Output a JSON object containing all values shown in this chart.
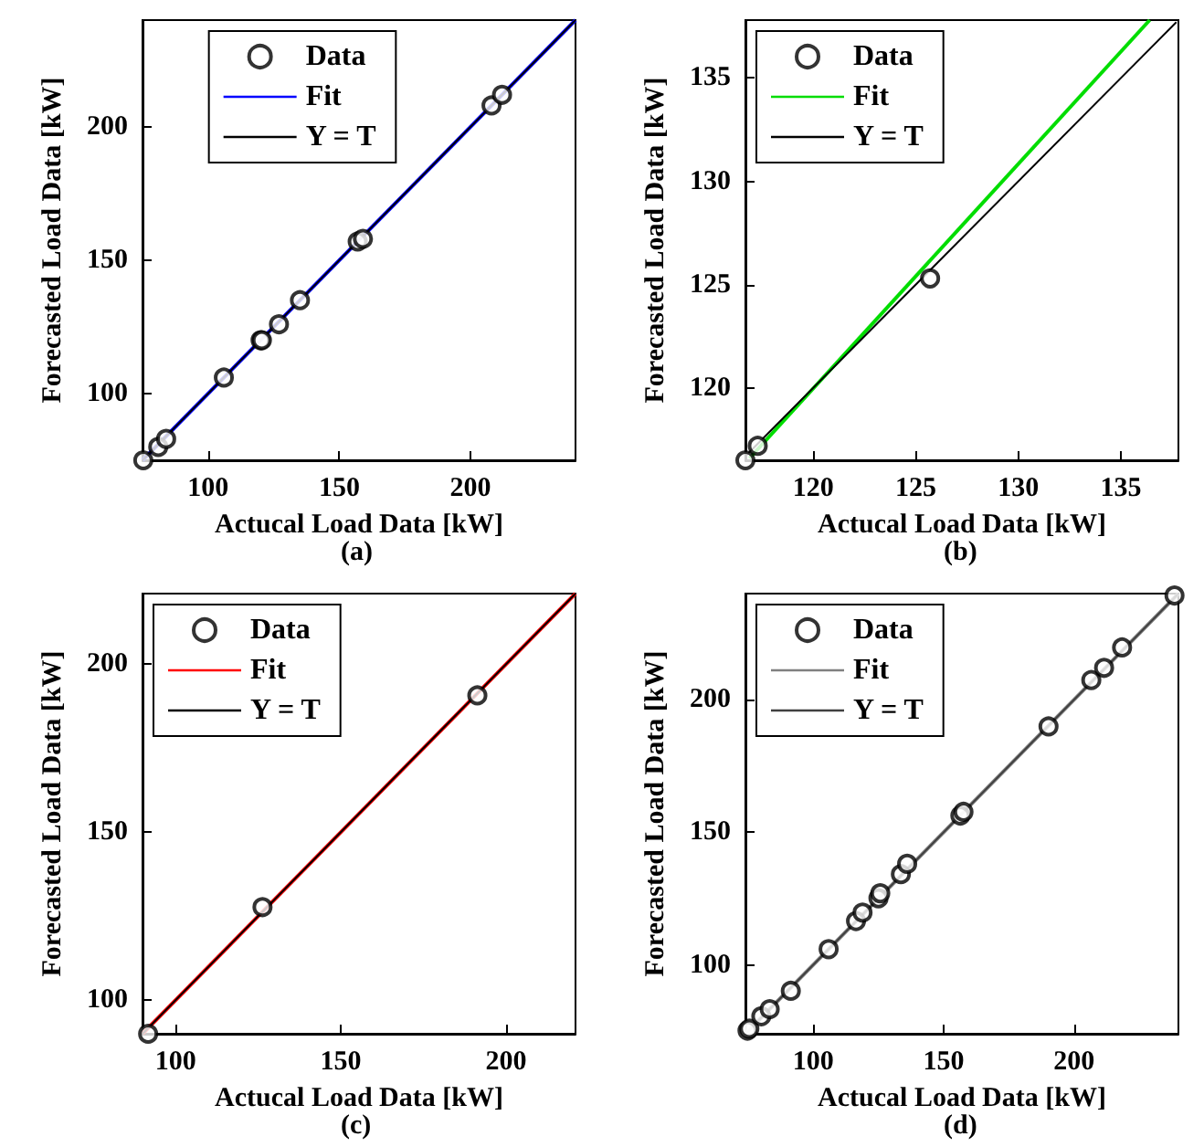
{
  "chart_data": [
    {
      "type": "scatter",
      "xlabel": "Actucal Load Data [kW]",
      "ylabel": "Forecasted Load Data [kW]",
      "annotations": [
        "(a)"
      ],
      "xlim": [
        75,
        240
      ],
      "ylim": [
        75,
        240
      ],
      "xticks": [
        100,
        150,
        200
      ],
      "yticks": [
        100,
        150,
        200
      ],
      "grid": false,
      "legend": "top",
      "series": [
        {
          "name": "Data",
          "marker": "circle",
          "color": "#000000",
          "x": [
            75.3,
            81,
            84,
            106,
            120,
            120.5,
            127,
            135,
            157,
            159,
            208,
            212
          ],
          "values": [
            75,
            80,
            83,
            106,
            120,
            120,
            126,
            135,
            157,
            158,
            208,
            212
          ]
        },
        {
          "name": "Fit",
          "type": "line",
          "marker": "none",
          "color": "#0000ff",
          "x": [
            75,
            240
          ],
          "values": [
            75,
            240
          ]
        },
        {
          "name": "Y = T",
          "type": "line",
          "marker": "none",
          "color": "#000000",
          "x": [
            75,
            240
          ],
          "values": [
            75,
            240
          ]
        }
      ]
    },
    {
      "type": "scatter",
      "xlabel": "Actucal Load Data [kW]",
      "ylabel": "Forecasted Load Data [kW]",
      "annotations": [
        "(b)"
      ],
      "xlim": [
        116.7,
        137.8
      ],
      "ylim": [
        116.5,
        137.8
      ],
      "xticks": [
        120,
        125,
        130,
        135
      ],
      "yticks": [
        120,
        125,
        130,
        135
      ],
      "grid": false,
      "legend": "top left",
      "series": [
        {
          "name": "Data",
          "marker": "circle",
          "color": "#000000",
          "x": [
            116.7,
            117.3,
            125.7
          ],
          "values": [
            116.5,
            117.2,
            125.3
          ]
        },
        {
          "name": "Fit",
          "type": "line",
          "marker": "none",
          "color": "#00dd00",
          "x": [
            116.9,
            136.4
          ],
          "values": [
            116.6,
            137.8
          ]
        },
        {
          "name": "Y = T",
          "type": "line",
          "marker": "none",
          "color": "#000000",
          "x": [
            116.7,
            137.7
          ],
          "values": [
            116.7,
            137.7
          ]
        }
      ]
    },
    {
      "type": "scatter",
      "xlabel": "Actucal Load Data [kW]",
      "ylabel": "Forecasted Load Data [kW]",
      "annotations": [
        "(c)"
      ],
      "xlim": [
        90,
        221
      ],
      "ylim": [
        90,
        221
      ],
      "xticks": [
        100,
        150,
        200
      ],
      "yticks": [
        100,
        150,
        200
      ],
      "grid": false,
      "legend": "top left",
      "series": [
        {
          "name": "Data",
          "marker": "circle",
          "color": "#000000",
          "x": [
            91.7,
            126.3,
            191.3
          ],
          "values": [
            90,
            127.7,
            190.7
          ]
        },
        {
          "name": "Fit",
          "type": "line",
          "marker": "none",
          "color": "#ff0000",
          "x": [
            90,
            221
          ],
          "values": [
            90,
            221
          ]
        },
        {
          "name": "Y = T",
          "type": "line",
          "marker": "none",
          "color": "#000000",
          "x": [
            90,
            221
          ],
          "values": [
            90,
            221
          ]
        }
      ]
    },
    {
      "type": "scatter",
      "xlabel": "Actucal Load Data [kW]",
      "ylabel": "Forecasted Load Data [kW]",
      "annotations": [
        "(d)"
      ],
      "xlim": [
        74,
        240
      ],
      "ylim": [
        74,
        240
      ],
      "xticks": [
        100,
        150,
        200
      ],
      "yticks": [
        100,
        150,
        200
      ],
      "grid": false,
      "legend": "top left",
      "series": [
        {
          "name": "Data",
          "marker": "circle",
          "color": "#000000",
          "x": [
            74.8,
            75.5,
            80.1,
            83.3,
            91.4,
            105.9,
            116.4,
            118.9,
            125,
            125.7,
            133.6,
            136,
            156.4,
            157.6,
            190.2,
            206.6,
            211.5,
            218.4,
            238.5
          ],
          "values": [
            75.2,
            75.9,
            80.6,
            83.3,
            90.2,
            105.9,
            116.5,
            119.7,
            125.1,
            127,
            134.2,
            138.1,
            156.3,
            157.7,
            189.9,
            207.4,
            212,
            219.7,
            239.3
          ]
        },
        {
          "name": "Fit",
          "type": "line",
          "marker": "none",
          "color": "#808080",
          "x": [
            74,
            240
          ],
          "values": [
            74,
            240
          ]
        },
        {
          "name": "Y = T",
          "type": "line",
          "marker": "none",
          "color": "#404040",
          "x": [
            74,
            240
          ],
          "values": [
            74,
            240
          ]
        }
      ]
    }
  ]
}
